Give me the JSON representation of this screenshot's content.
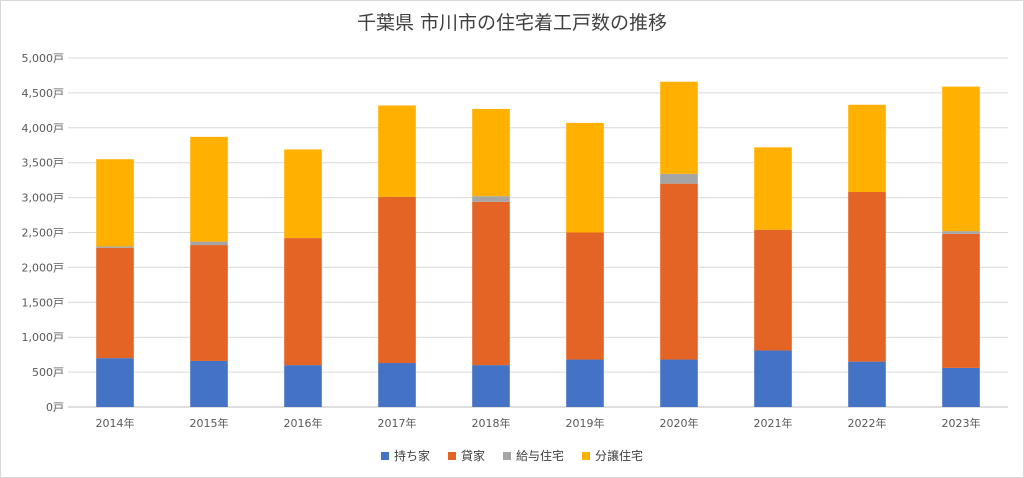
{
  "chart_data": {
    "type": "bar",
    "stacked": true,
    "title": "千葉県 市川市の住宅着工戸数の推移",
    "categories": [
      "2014年",
      "2015年",
      "2016年",
      "2017年",
      "2018年",
      "2019年",
      "2020年",
      "2021年",
      "2022年",
      "2023年"
    ],
    "ylim": [
      0,
      5000
    ],
    "yticks": [
      "0戸",
      "500戸",
      "1,000戸",
      "1,500戸",
      "2,000戸",
      "2,500戸",
      "3,000戸",
      "3,500戸",
      "4,000戸",
      "4,500戸",
      "5,000戸"
    ],
    "grid": true,
    "legend_position": "bottom",
    "series": [
      {
        "name": "持ち家",
        "color": "#4472C4",
        "values": [
          700,
          660,
          600,
          630,
          600,
          680,
          680,
          810,
          650,
          560
        ]
      },
      {
        "name": "貸家",
        "color": "#E46425",
        "values": [
          1580,
          1660,
          1820,
          2380,
          2340,
          1820,
          2520,
          1730,
          2430,
          1920
        ]
      },
      {
        "name": "給与住宅",
        "color": "#A5A5A5",
        "values": [
          20,
          50,
          0,
          0,
          80,
          0,
          140,
          0,
          0,
          40
        ]
      },
      {
        "name": "分譲住宅",
        "color": "#FFB000",
        "values": [
          1250,
          1500,
          1270,
          1310,
          1250,
          1570,
          1320,
          1180,
          1250,
          2070
        ]
      }
    ]
  }
}
